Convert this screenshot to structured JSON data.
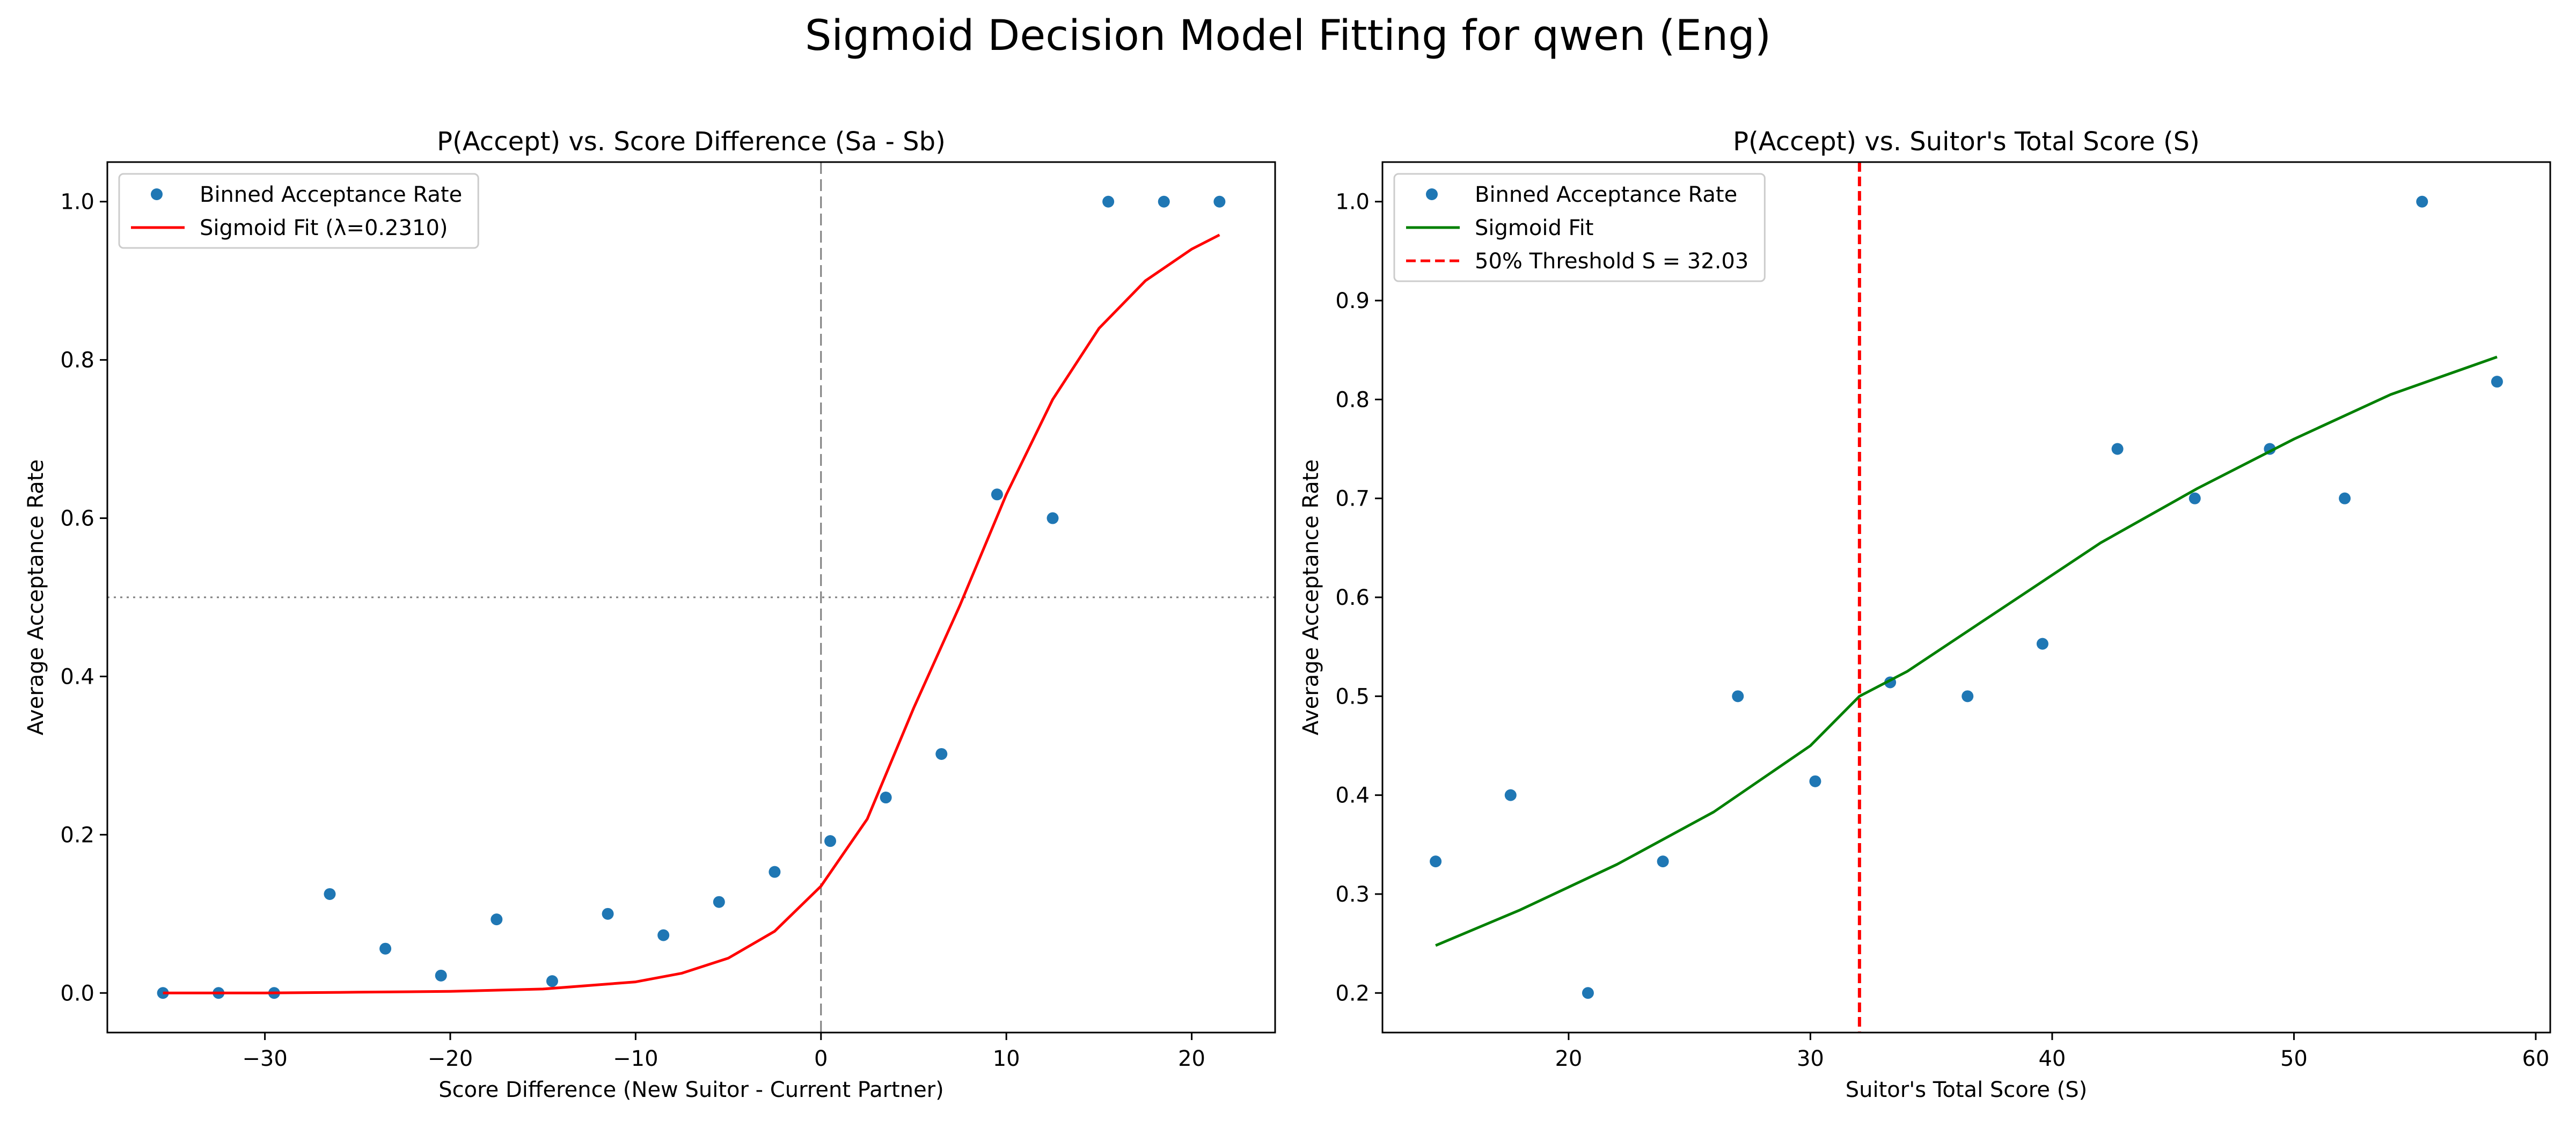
{
  "figure": {
    "title": "Sigmoid Decision Model Fitting for qwen (Eng)"
  },
  "chart_data": [
    {
      "type": "scatter",
      "title": "P(Accept) vs. Score Difference (Sa - Sb)",
      "xlabel": "Score Difference (New Suitor - Current Partner)",
      "ylabel": "Average Acceptance Rate",
      "xlim": [
        -38.5,
        24.5
      ],
      "ylim": [
        -0.05,
        1.05
      ],
      "xticks": [
        -30,
        -20,
        -10,
        0,
        10,
        20
      ],
      "xtick_labels": [
        "−30",
        "−20",
        "−10",
        "0",
        "10",
        "20"
      ],
      "yticks": [
        0.0,
        0.2,
        0.4,
        0.6,
        0.8,
        1.0
      ],
      "ytick_labels": [
        "0.0",
        "0.2",
        "0.4",
        "0.6",
        "0.8",
        "1.0"
      ],
      "grid": false,
      "legend_position": "upper left",
      "series": [
        {
          "name": "Binned Acceptance Rate",
          "kind": "scatter",
          "color": "#1f77b4",
          "x": [
            -35.5,
            -32.5,
            -29.5,
            -26.5,
            -23.5,
            -20.5,
            -17.5,
            -14.5,
            -11.5,
            -8.5,
            -5.5,
            -2.5,
            0.5,
            3.5,
            6.5,
            9.5,
            12.5,
            15.5,
            18.5,
            21.5
          ],
          "y": [
            0.0,
            0.0,
            0.0,
            0.125,
            0.056,
            0.022,
            0.093,
            0.015,
            0.1,
            0.073,
            0.115,
            0.153,
            0.192,
            0.247,
            0.302,
            0.63,
            0.6,
            1.0,
            1.0,
            1.0
          ]
        },
        {
          "name": "Sigmoid Fit (λ=0.2310)",
          "kind": "line",
          "color": "#ff0000",
          "x": [
            -35.5,
            -30,
            -25,
            -20,
            -15,
            -10,
            -7.5,
            -5,
            -2.5,
            0,
            2.5,
            5,
            7.5,
            10,
            12.5,
            15,
            17.5,
            20,
            21.5
          ],
          "y": [
            0.0,
            0.0,
            0.001,
            0.002,
            0.005,
            0.014,
            0.025,
            0.044,
            0.078,
            0.135,
            0.22,
            0.36,
            0.49,
            0.63,
            0.75,
            0.84,
            0.9,
            0.94,
            0.958
          ]
        }
      ],
      "reference_lines": [
        {
          "orientation": "vertical",
          "value": 0,
          "style": "dashed",
          "color": "#808080"
        },
        {
          "orientation": "horizontal",
          "value": 0.5,
          "style": "dotted",
          "color": "#808080"
        }
      ]
    },
    {
      "type": "scatter",
      "title": "P(Accept) vs. Suitor's Total Score (S)",
      "xlabel": "Suitor's Total Score (S)",
      "ylabel": "Average Acceptance Rate",
      "xlim": [
        12.3,
        60.6
      ],
      "ylim": [
        0.16,
        1.04
      ],
      "xticks": [
        20,
        30,
        40,
        50,
        60
      ],
      "xtick_labels": [
        "20",
        "30",
        "40",
        "50",
        "60"
      ],
      "yticks": [
        0.2,
        0.3,
        0.4,
        0.5,
        0.6,
        0.7,
        0.8,
        0.9,
        1.0
      ],
      "ytick_labels": [
        "0.2",
        "0.3",
        "0.4",
        "0.5",
        "0.6",
        "0.7",
        "0.8",
        "0.9",
        "1.0"
      ],
      "grid": false,
      "legend_position": "upper left",
      "series": [
        {
          "name": "Binned Acceptance Rate",
          "kind": "scatter",
          "color": "#1f77b4",
          "x": [
            14.5,
            17.6,
            20.8,
            23.9,
            27.0,
            30.2,
            33.3,
            36.5,
            39.6,
            42.7,
            45.9,
            49.0,
            52.1,
            55.3,
            58.4
          ],
          "y": [
            0.333,
            0.4,
            0.2,
            0.333,
            0.5,
            0.414,
            0.514,
            0.5,
            0.553,
            0.75,
            0.7,
            0.75,
            0.7,
            1.0,
            0.818
          ]
        },
        {
          "name": "Sigmoid Fit",
          "kind": "line",
          "color": "#008000",
          "x": [
            14.5,
            18,
            22,
            26,
            30,
            32.03,
            34,
            38,
            42,
            46,
            50,
            54,
            58.4
          ],
          "y": [
            0.248,
            0.284,
            0.33,
            0.383,
            0.45,
            0.5,
            0.525,
            0.59,
            0.655,
            0.71,
            0.76,
            0.805,
            0.843
          ]
        }
      ],
      "reference_lines": [
        {
          "orientation": "vertical",
          "value": 32.03,
          "style": "dashed",
          "color": "#ff0000",
          "legend": "50% Threshold S = 32.03"
        }
      ]
    }
  ]
}
